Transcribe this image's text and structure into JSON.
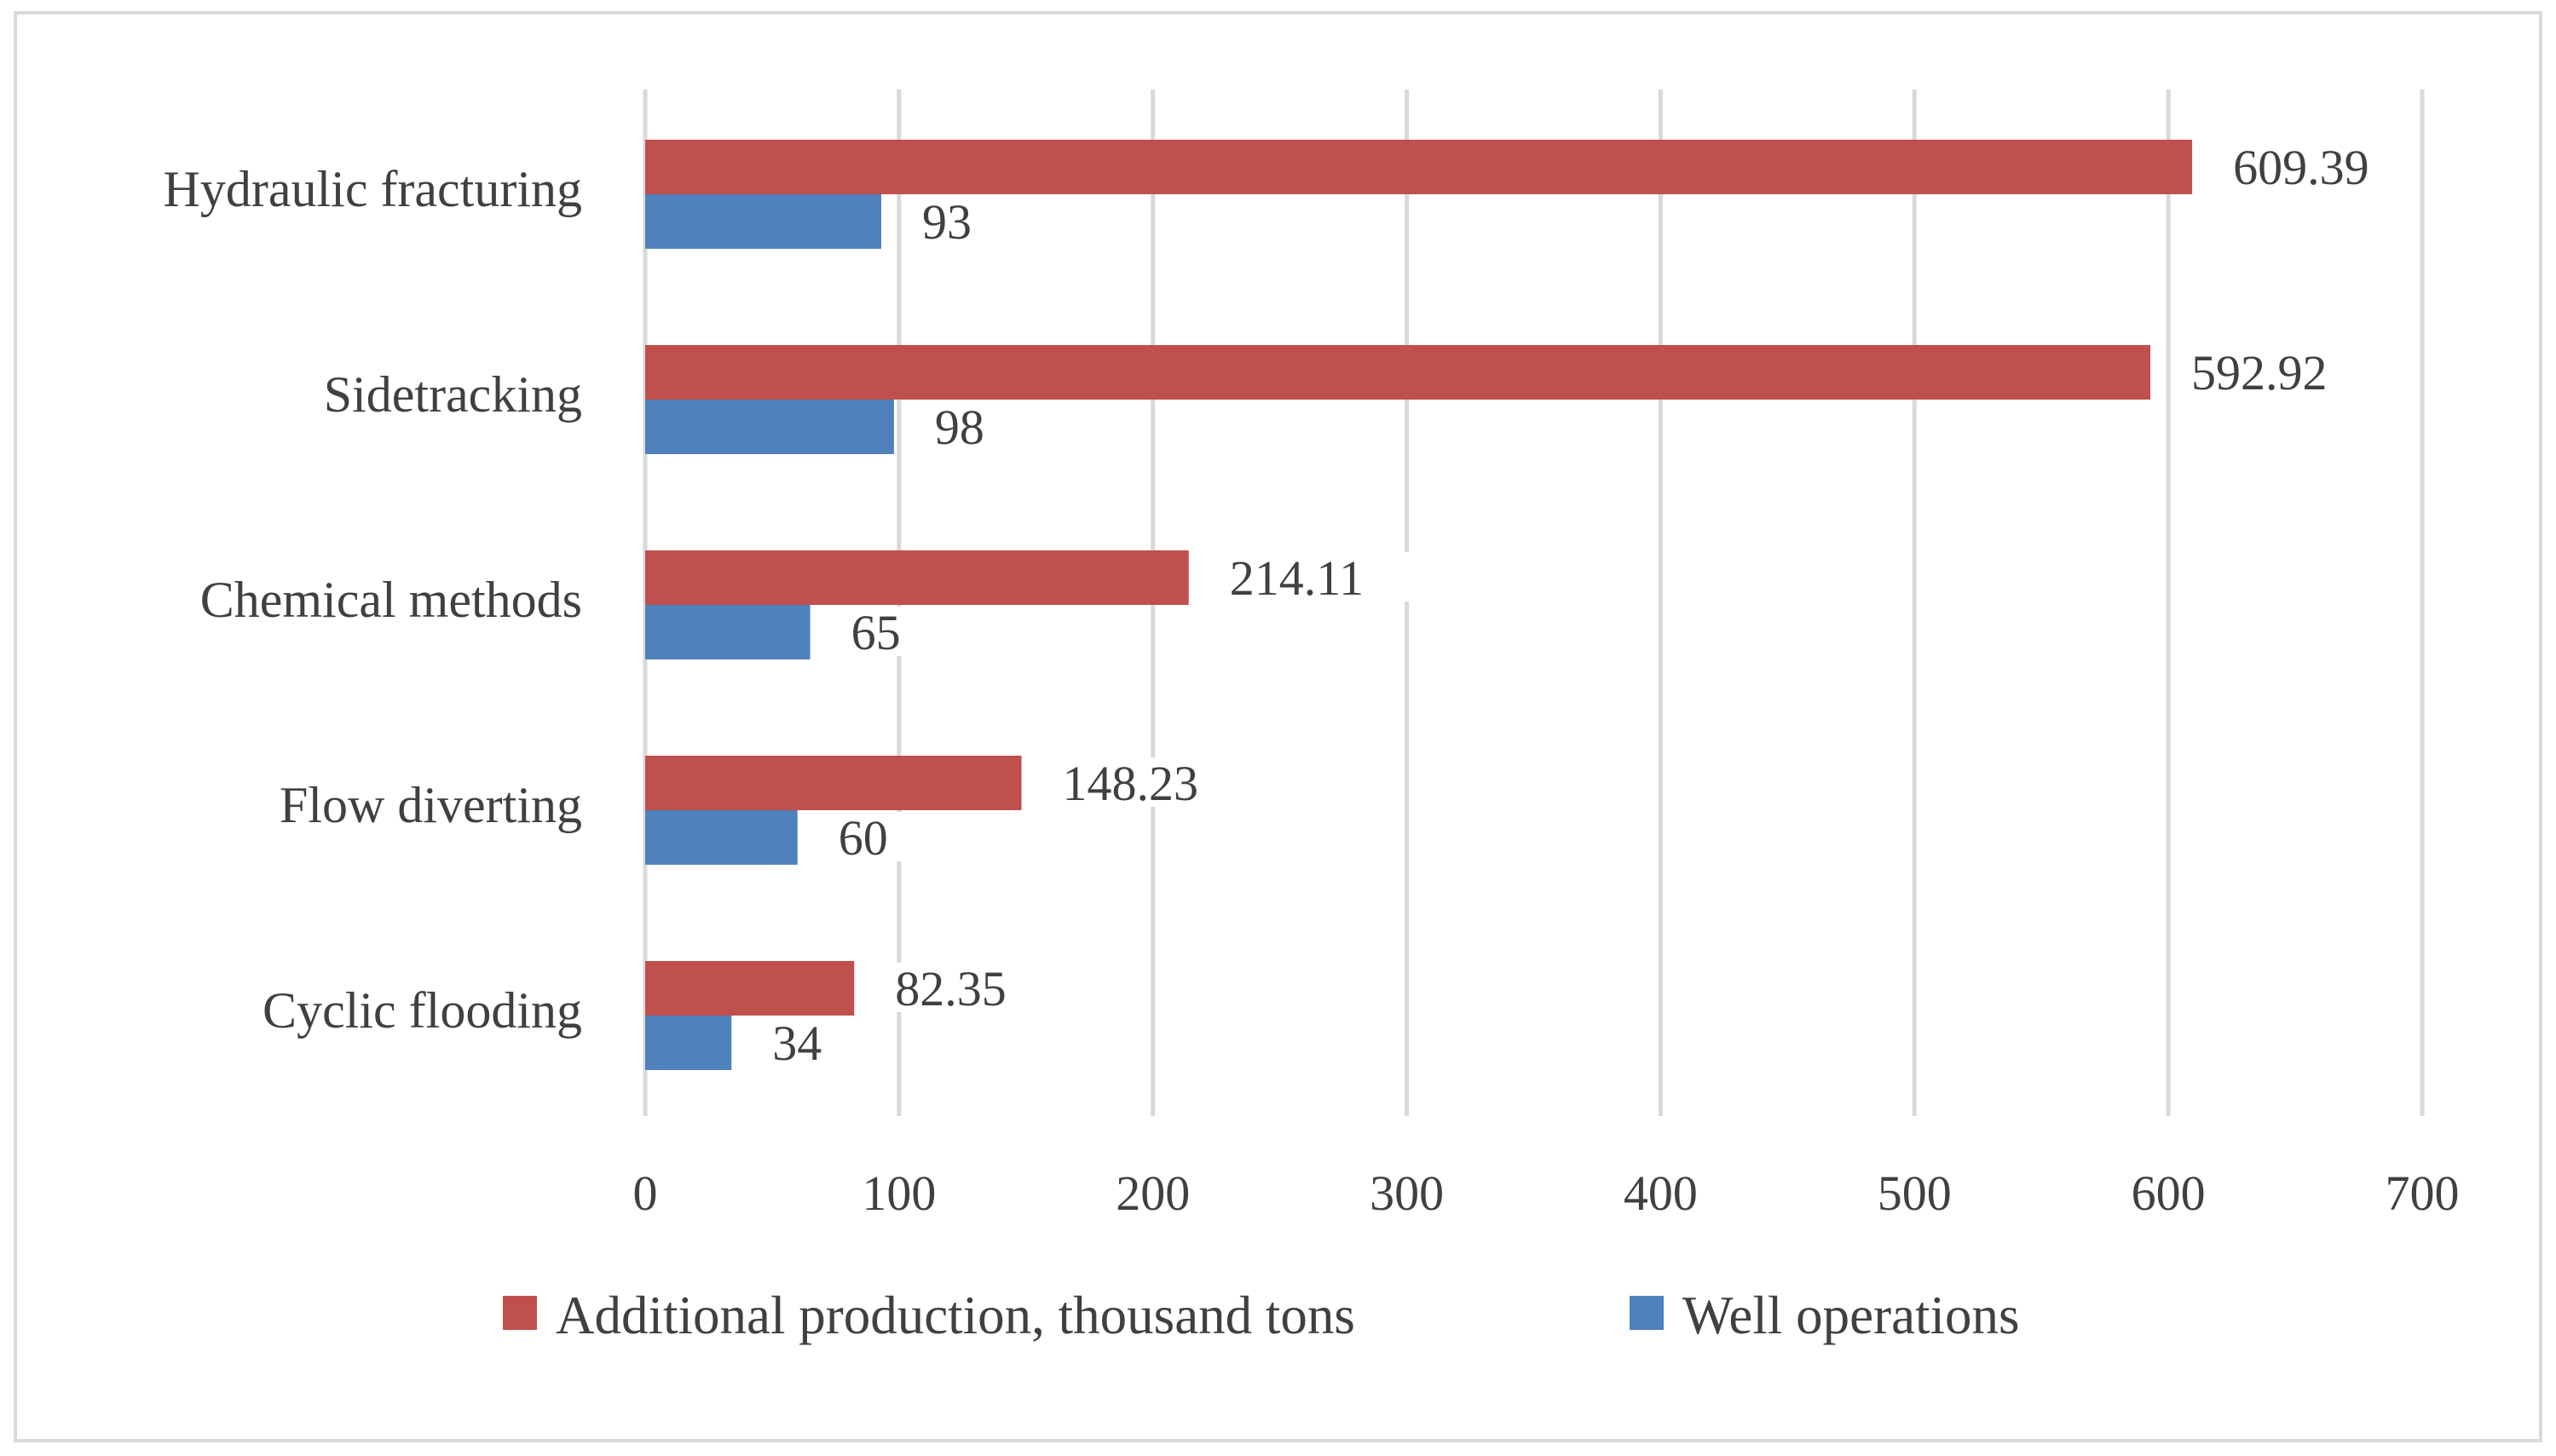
{
  "chart_data": {
    "type": "bar",
    "orientation": "horizontal",
    "categories": [
      "Hydraulic fracturing",
      "Sidetracking",
      "Chemical methods",
      "Flow diverting",
      "Cyclic flooding"
    ],
    "series": [
      {
        "name": "Additional production, thousand tons",
        "color": "#c0504d",
        "values": [
          609.39,
          592.92,
          214.11,
          148.23,
          82.35
        ],
        "labels": [
          "609.39",
          "592.92",
          "214.11",
          "148.23",
          "82.35"
        ]
      },
      {
        "name": "Well operations",
        "color": "#4f81bd",
        "values": [
          93,
          98,
          65,
          60,
          34
        ],
        "labels": [
          "93",
          "98",
          "65",
          "60",
          "34"
        ]
      }
    ],
    "title": "",
    "xlabel": "",
    "ylabel": "",
    "xlim": [
      0,
      700
    ],
    "xticks": [
      0,
      100,
      200,
      300,
      400,
      500,
      600,
      700
    ],
    "xtick_labels": [
      "0",
      "100",
      "200",
      "300",
      "400",
      "500",
      "600",
      "700"
    ],
    "grid": true,
    "legend": "bottom"
  }
}
